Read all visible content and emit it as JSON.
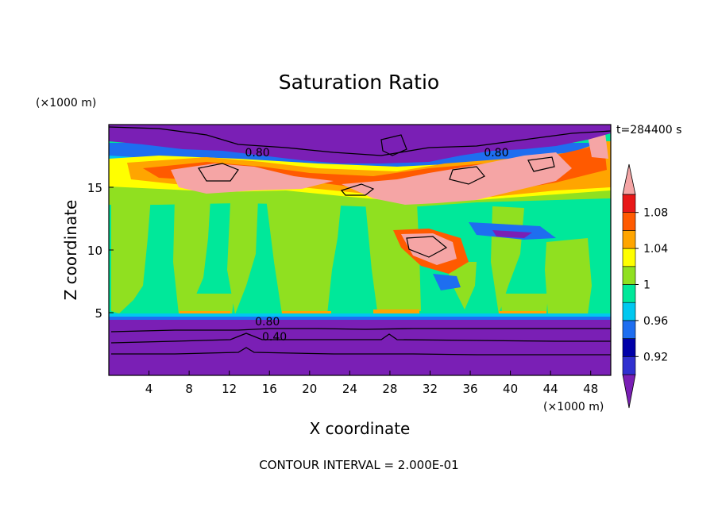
{
  "chart_data": {
    "type": "heatmap",
    "title": "Saturation Ratio",
    "xlabel": "X coordinate",
    "ylabel": "Z coordinate",
    "x_unit": "(×1000 m)",
    "y_unit": "(×1000 m)",
    "time_label": "t=284400 s",
    "footer": "CONTOUR INTERVAL = 2.000E-01",
    "xlim": [
      0,
      50
    ],
    "ylim": [
      0,
      20
    ],
    "x_ticks": [
      4,
      8,
      12,
      16,
      20,
      24,
      28,
      32,
      36,
      40,
      44,
      48
    ],
    "x_tick_labels": [
      "4",
      "8",
      "12",
      "16",
      "20",
      "24",
      "28",
      "32",
      "36",
      "40",
      "44",
      "48"
    ],
    "y_ticks": [
      5,
      10,
      15
    ],
    "y_tick_labels": [
      "5",
      "10",
      "15"
    ],
    "colorbar": {
      "levels": [
        0.9,
        0.92,
        0.94,
        0.96,
        0.98,
        1.0,
        1.02,
        1.04,
        1.06,
        1.08,
        1.1
      ],
      "tick_values": [
        0.92,
        0.96,
        1.0,
        1.04,
        1.08
      ],
      "tick_labels": [
        "0.92",
        "0.96",
        "1",
        "1.04",
        "1.08"
      ],
      "colors": [
        "#7a1fb5",
        "#3030d0",
        "#0000a8",
        "#1e6ef0",
        "#00c8f0",
        "#00e89a",
        "#90e020",
        "#ffff00",
        "#ffa500",
        "#ff5a00",
        "#e81818",
        "#f5a5a5"
      ],
      "extend": "both"
    },
    "contour_labels": [
      {
        "text": "0.80",
        "x": 14.8,
        "y": 17.8
      },
      {
        "text": "0.80",
        "x": 38.6,
        "y": 17.8
      },
      {
        "text": "0.80",
        "x": 15.8,
        "y": 4.3
      },
      {
        "text": "0.40",
        "x": 16.5,
        "y": 3.1
      }
    ]
  },
  "colors": {
    "band_0.8": "#7a1fb5",
    "band_1.00": "#00e89a",
    "band_1.02": "#90e020",
    "band_1.04": "#ffff00",
    "band_1.06": "#ffa500",
    "band_1.08": "#ff5a00",
    "band_above": "#f5a5a5"
  }
}
